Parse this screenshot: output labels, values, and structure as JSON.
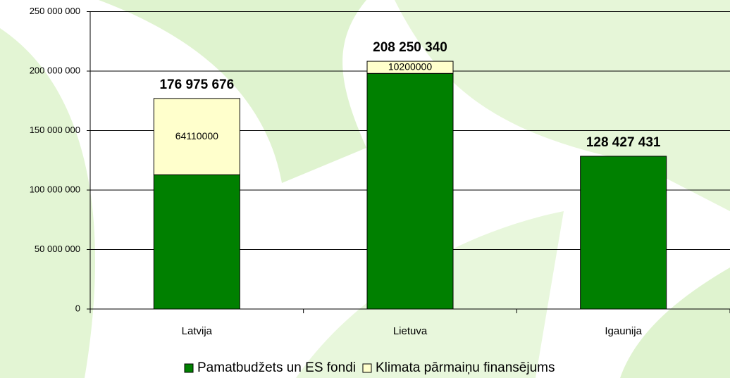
{
  "chart_data": {
    "type": "stacked_bar",
    "categories": [
      "Latvija",
      "Lietuva",
      "Igaunija"
    ],
    "series": [
      {
        "name": "Pamatbudžets un ES fondi",
        "color": "#008000",
        "values": [
          112865676,
          198050340,
          128427431
        ]
      },
      {
        "name": "Klimata pārmaiņu finansējums",
        "color": "#ffffcc",
        "values": [
          64110000,
          10200000,
          null
        ]
      }
    ],
    "totals": [
      176975676,
      208250340,
      128427431
    ],
    "total_labels": [
      "176 975 676",
      "208 250 340",
      "128 427 431"
    ],
    "ylim": [
      0,
      250000000
    ],
    "yticks": [
      0,
      {
        "value": 50000000,
        "label": "50 000 000"
      },
      {
        "value": 100000000,
        "label": "100 000 000"
      },
      {
        "value": 150000000,
        "label": "150 000 000"
      },
      {
        "value": 200000000,
        "label": "200 000 000"
      },
      {
        "value": 250000000,
        "label": "250 000 000"
      }
    ],
    "grid": true,
    "legend": "bottom"
  }
}
